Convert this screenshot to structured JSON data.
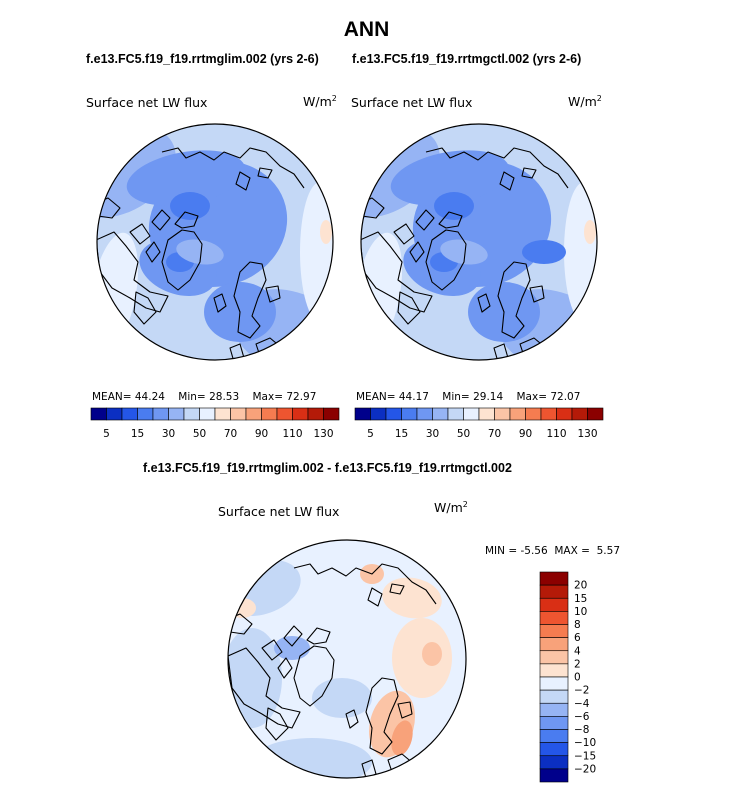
{
  "page": {
    "title": "ANN",
    "diff_title": "f.e13.FC5.f19_f19.rrtmglim.002 - f.e13.FC5.f19_f19.rrtmgctl.002"
  },
  "chart_data": [
    {
      "type": "polar-contour-map",
      "title": "f.e13.FC5.f19_f19.rrtmglim.002 (yrs 2-6)",
      "variable": "Surface net LW flux",
      "units": "W/m",
      "units_exp": "2",
      "stats": {
        "mean_label": "MEAN=",
        "mean": "44.24",
        "min_label": "Min=",
        "min": "28.53",
        "max_label": "Max=",
        "max": "72.97"
      },
      "levels": [
        "5",
        "15",
        "30",
        "50",
        "70",
        "90",
        "110",
        "130"
      ],
      "colors": [
        "#00008b",
        "#0b2fc2",
        "#2456e8",
        "#4a7cf0",
        "#6f97f2",
        "#96b4f4",
        "#c4d8f6",
        "#e8f1ff",
        "#fde3d1",
        "#fbc4a6",
        "#f8a27a",
        "#f57c50",
        "#ee5530",
        "#d92f15",
        "#b41a08",
        "#8b0000"
      ]
    },
    {
      "type": "polar-contour-map",
      "title": "f.e13.FC5.f19_f19.rrtmgctl.002 (yrs 2-6)",
      "variable": "Surface net LW flux",
      "units": "W/m",
      "units_exp": "2",
      "stats": {
        "mean_label": "MEAN=",
        "mean": "44.17",
        "min_label": "Min=",
        "min": "29.14",
        "max_label": "Max=",
        "max": "72.07"
      },
      "levels": [
        "5",
        "15",
        "30",
        "50",
        "70",
        "90",
        "110",
        "130"
      ],
      "colors": [
        "#00008b",
        "#0b2fc2",
        "#2456e8",
        "#4a7cf0",
        "#6f97f2",
        "#96b4f4",
        "#c4d8f6",
        "#e8f1ff",
        "#fde3d1",
        "#fbc4a6",
        "#f8a27a",
        "#f57c50",
        "#ee5530",
        "#d92f15",
        "#b41a08",
        "#8b0000"
      ]
    },
    {
      "type": "polar-contour-map-difference",
      "title": "f.e13.FC5.f19_f19.rrtmglim.002 - f.e13.FC5.f19_f19.rrtmgctl.002",
      "variable": "Surface net LW flux",
      "units": "W/m",
      "units_exp": "2",
      "stats": {
        "min_label": "MIN =",
        "min": "-5.56",
        "max_label": "MAX =",
        "max": "5.57"
      },
      "levels": [
        "20",
        "15",
        "10",
        "8",
        "6",
        "4",
        "2",
        "0",
        "−2",
        "−4",
        "−6",
        "−8",
        "−10",
        "−15",
        "−20"
      ],
      "colors": [
        "#8b0000",
        "#b41a08",
        "#d92f15",
        "#ee5530",
        "#f57c50",
        "#f8a27a",
        "#fbc4a6",
        "#fde3d1",
        "#e8f1ff",
        "#c4d8f6",
        "#96b4f4",
        "#6f97f2",
        "#4a7cf0",
        "#2456e8",
        "#0b2fc2",
        "#00008b"
      ]
    }
  ]
}
